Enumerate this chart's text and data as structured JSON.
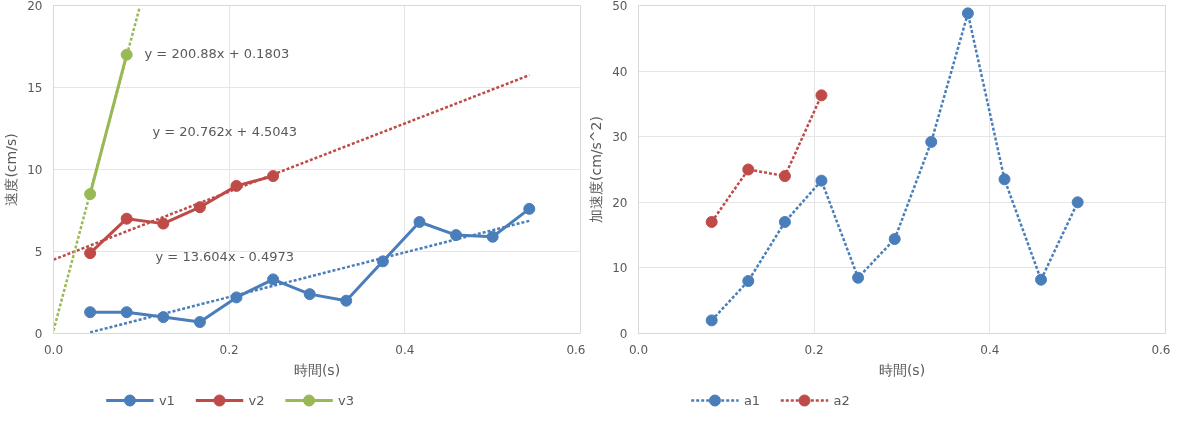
{
  "chart_data": [
    {
      "type": "line",
      "ylabel": "速度(cm/s)",
      "xlabel": "時間(s)",
      "xlim": [
        0,
        0.6
      ],
      "xticks": [
        {
          "value": 0,
          "label": "0.0"
        },
        0.2,
        0.4,
        0.6
      ],
      "ylim": [
        0,
        20
      ],
      "yticks": [
        0,
        5,
        10,
        15,
        20
      ],
      "grid": true,
      "legend": "bottom",
      "marker": "circle",
      "line_style": "solid",
      "series": [
        {
          "name": "v1",
          "color": "#4a7ebb",
          "x": [
            0.0417,
            0.0833,
            0.125,
            0.1667,
            0.2083,
            0.25,
            0.2917,
            0.3333,
            0.375,
            0.4167,
            0.4583,
            0.5,
            0.5417
          ],
          "values": [
            1.3,
            1.3,
            1.0,
            0.7,
            2.2,
            3.3,
            2.4,
            2.0,
            4.4,
            6.8,
            6.0,
            5.9,
            7.6
          ]
        },
        {
          "name": "v2",
          "color": "#be4b48",
          "x": [
            0.0417,
            0.0833,
            0.125,
            0.1667,
            0.2083,
            0.25
          ],
          "values": [
            4.9,
            7.0,
            6.7,
            7.7,
            9.0,
            9.6
          ]
        },
        {
          "name": "v3",
          "color": "#98b954",
          "x": [
            0.0417,
            0.0833
          ],
          "values": [
            8.5,
            17.0
          ]
        },
        {
          "color": "#4a7ebb",
          "marker": "none",
          "line_style": "dotted",
          "x": [
            0.0417,
            0.5417
          ],
          "values": [
            0.07,
            6.87
          ]
        },
        {
          "color": "#be4b48",
          "marker": "none",
          "line_style": "dotted",
          "x": [
            0,
            0.5417
          ],
          "values": [
            4.5,
            15.75
          ]
        },
        {
          "color": "#98b954",
          "marker": "none",
          "line_style": "dotted",
          "x": [
            0,
            0.098
          ],
          "values": [
            0.18,
            19.87
          ]
        }
      ],
      "annotations": [
        "y = 200.88x + 0.1803",
        "y = 20.762x + 4.5043",
        "y = 13.604x - 0.4973"
      ]
    },
    {
      "type": "line",
      "ylabel": "加速度(cm/s^2)",
      "xlabel": "時間(s)",
      "xlim": [
        0,
        0.6
      ],
      "xticks": [
        {
          "value": 0,
          "label": "0.0"
        },
        0.2,
        0.4,
        0.6
      ],
      "ylim": [
        0,
        50
      ],
      "yticks": [
        0,
        10,
        20,
        30,
        40,
        50
      ],
      "grid": true,
      "legend": "bottom",
      "marker": "circle",
      "line_style": "dotted",
      "series": [
        {
          "name": "a1",
          "color": "#4a7ebb",
          "x": [
            0.0833,
            0.125,
            0.1667,
            0.2083,
            0.25,
            0.2917,
            0.3333,
            0.375,
            0.4167,
            0.4583,
            0.5
          ],
          "values": [
            2,
            8,
            17,
            23.3,
            8.5,
            14.4,
            29.2,
            48.8,
            23.5,
            8.2,
            20
          ]
        },
        {
          "name": "a2",
          "color": "#be4b48",
          "x": [
            0.0833,
            0.125,
            0.1667,
            0.2083
          ],
          "values": [
            17,
            25,
            24,
            36.3
          ]
        }
      ]
    }
  ]
}
